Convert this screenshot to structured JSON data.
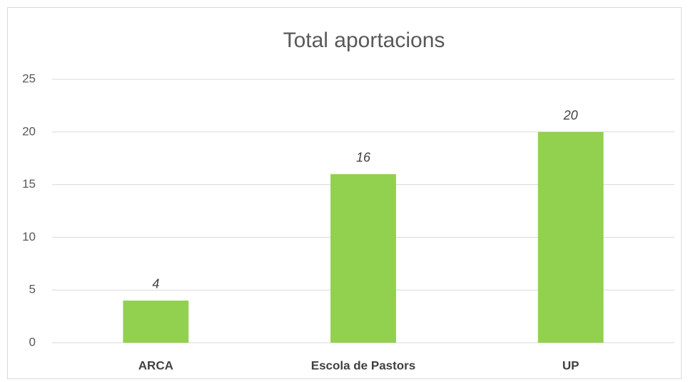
{
  "chart_data": {
    "type": "bar",
    "title": "Total aportacions",
    "categories": [
      "ARCA",
      "Escola de Pastors",
      "UP"
    ],
    "values": [
      4,
      16,
      20
    ],
    "color": "#92d050",
    "ylim": [
      0,
      25
    ],
    "yticks": [
      0,
      5,
      10,
      15,
      20,
      25
    ],
    "grid": true,
    "show_values": true
  }
}
